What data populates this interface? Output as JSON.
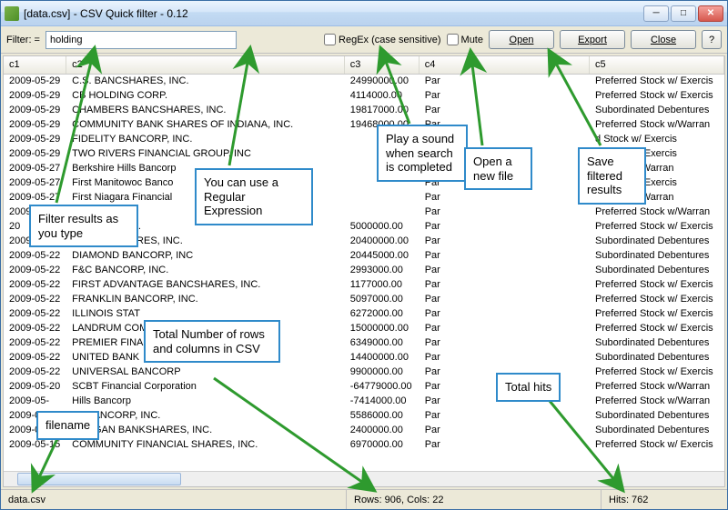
{
  "window": {
    "title": "[data.csv] - CSV Quick filter - 0.12"
  },
  "toolbar": {
    "filter_label": "Filter: =",
    "filter_value": "holding",
    "regex_label": "RegEx (case sensitive)",
    "mute_label": "Mute",
    "open_label": "Open",
    "export_label": "Export",
    "close_label": "Close",
    "help_label": "?"
  },
  "columns": {
    "c1": "c1",
    "c2": "c2",
    "c3": "c3",
    "c4": "c4",
    "c5": "c5"
  },
  "rows": [
    {
      "c1": "2009-05-29",
      "c2": "C.S. BANCSHARES, INC.",
      "c3": "24990000.00",
      "c4": "Par",
      "c5": "Preferred Stock w/ Exercis"
    },
    {
      "c1": "2009-05-29",
      "c2": "CB HOLDING CORP.",
      "c3": "4114000.00",
      "c4": "Par",
      "c5": "Preferred Stock w/ Exercis"
    },
    {
      "c1": "2009-05-29",
      "c2": "CHAMBERS BANCSHARES, INC.",
      "c3": "19817000.00",
      "c4": "Par",
      "c5": "Subordinated Debentures"
    },
    {
      "c1": "2009-05-29",
      "c2": "COMMUNITY BANK SHARES OF INDIANA, INC.",
      "c3": "19468000.00",
      "c4": "Par",
      "c5": "Preferred Stock w/Warran"
    },
    {
      "c1": "2009-05-29",
      "c2": "FIDELITY BANCORP, INC.",
      "c3": "",
      "c4": "",
      "c5": "d Stock w/ Exercis"
    },
    {
      "c1": "2009-05-29",
      "c2": "TWO RIVERS FINANCIAL GROUP, INC",
      "c3": "",
      "c4": "",
      "c5": "d Stock w/ Exercis"
    },
    {
      "c1": "2009-05-27",
      "c2": "Berkshire Hills Bancorp",
      "c3": "",
      "c4": "Par",
      "c5": "d Stock w/Warran"
    },
    {
      "c1": "2009-05-27",
      "c2": "First Manitowoc Banco",
      "c3": "",
      "c4": "Par",
      "c5": "d Stock w/ Exercis"
    },
    {
      "c1": "2009-05-27",
      "c2": "First Niagara Financial",
      "c3": "",
      "c4": "Par",
      "c5": "d Stock w/Warran"
    },
    {
      "c1": "2009-05-22",
      "c2": "ural In",
      "c3": "",
      "c4": "Par",
      "c5": "Preferred Stock w/Warran"
    },
    {
      "c1": "20",
      "c2": "NANCIAL, INC.",
      "c3": "5000000.00",
      "c4": "Par",
      "c5": "Preferred Stock w/ Exercis"
    },
    {
      "c1": "2009-05-22",
      "c2": "TH BANCSHARES, INC.",
      "c3": "20400000.00",
      "c4": "Par",
      "c5": "Subordinated Debentures"
    },
    {
      "c1": "2009-05-22",
      "c2": "DIAMOND BANCORP, INC",
      "c3": "20445000.00",
      "c4": "Par",
      "c5": "Subordinated Debentures"
    },
    {
      "c1": "2009-05-22",
      "c2": "F&C BANCORP, INC.",
      "c3": "2993000.00",
      "c4": "Par",
      "c5": "Subordinated Debentures"
    },
    {
      "c1": "2009-05-22",
      "c2": "FIRST ADVANTAGE BANCSHARES, INC.",
      "c3": "1177000.00",
      "c4": "Par",
      "c5": "Preferred Stock w/ Exercis"
    },
    {
      "c1": "2009-05-22",
      "c2": "FRANKLIN BANCORP, INC.",
      "c3": "5097000.00",
      "c4": "Par",
      "c5": "Preferred Stock w/ Exercis"
    },
    {
      "c1": "2009-05-22",
      "c2": "ILLINOIS STAT",
      "c3": "6272000.00",
      "c4": "Par",
      "c5": "Preferred Stock w/ Exercis"
    },
    {
      "c1": "2009-05-22",
      "c2": "LANDRUM COM",
      "c3": "15000000.00",
      "c4": "Par",
      "c5": "Preferred Stock w/ Exercis"
    },
    {
      "c1": "2009-05-22",
      "c2": "PREMIER FINA",
      "c3": "6349000.00",
      "c4": "Par",
      "c5": "Subordinated Debentures"
    },
    {
      "c1": "2009-05-22",
      "c2": "UNITED BANK",
      "c3": "14400000.00",
      "c4": "Par",
      "c5": "Subordinated Debentures"
    },
    {
      "c1": "2009-05-22",
      "c2": "UNIVERSAL BANCORP",
      "c3": "9900000.00",
      "c4": "Par",
      "c5": "Preferred Stock w/ Exercis"
    },
    {
      "c1": "2009-05-20",
      "c2": "SCBT Financial Corporation",
      "c3": "-64779000.00",
      "c4": "Par",
      "c5": "Preferred Stock w/Warran"
    },
    {
      "c1": "2009-05-",
      "c2": "Hills Bancorp",
      "c3": "-7414000.00",
      "c4": "Par",
      "c5": "Preferred Stock w/Warran"
    },
    {
      "c1": "2009-05-",
      "c2": "EL BANCORP, INC.",
      "c3": "5586000.00",
      "c4": "Par",
      "c5": "Subordinated Debentures"
    },
    {
      "c1": "2009-05-15",
      "c2": "BROGAN BANKSHARES, INC.",
      "c3": "2400000.00",
      "c4": "Par",
      "c5": "Subordinated Debentures"
    },
    {
      "c1": "2009-05-15",
      "c2": "COMMUNITY FINANCIAL SHARES, INC.",
      "c3": "6970000.00",
      "c4": "Par",
      "c5": "Preferred Stock w/ Exercis"
    }
  ],
  "status": {
    "filename": "data.csv",
    "dims": "Rows: 906, Cols: 22",
    "hits": "Hits: 762"
  },
  "callouts": {
    "filter": "Filter results as you type",
    "regex": "You can use a Regular Expression",
    "mute": "Play a sound when search is completed",
    "open": "Open a new file",
    "export": "Save filtered results",
    "fname": "filename",
    "dims": "Total Number of rows and columns in CSV",
    "hits": "Total hits"
  },
  "style": {
    "arrow_color": "#2e9a2e",
    "callout_border": "#2f8aca"
  }
}
